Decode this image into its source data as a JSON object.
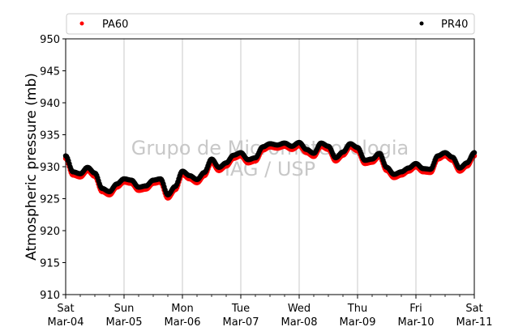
{
  "chart_data": {
    "type": "scatter",
    "ylabel": "Atmospheric pressure (mb)",
    "xlabel": "",
    "title": "",
    "ylim": [
      910,
      950
    ],
    "yticks": [
      910,
      915,
      920,
      925,
      930,
      935,
      940,
      945,
      950
    ],
    "xlim": [
      "2017-03-04",
      "2017-03-11"
    ],
    "xticks": [
      {
        "day": "Sat",
        "date": "Mar-04"
      },
      {
        "day": "Sun",
        "date": "Mar-05"
      },
      {
        "day": "Mon",
        "date": "Mar-06"
      },
      {
        "day": "Tue",
        "date": "Mar-07"
      },
      {
        "day": "Wed",
        "date": "Mar-08"
      },
      {
        "day": "Thu",
        "date": "Mar-09"
      },
      {
        "day": "Fri",
        "date": "Mar-10"
      },
      {
        "day": "Sat",
        "date": "Mar-11"
      }
    ],
    "grid": "vertical",
    "legend_position": "top",
    "watermark": [
      "Grupo de Micrometeorologia",
      "IAG / USP"
    ],
    "series": [
      {
        "name": "PA60",
        "color": "#ff0000",
        "x": [
          "2017-03-04 00:00",
          "2017-03-04 03:00",
          "2017-03-04 06:00",
          "2017-03-04 09:00",
          "2017-03-04 12:00",
          "2017-03-04 15:00",
          "2017-03-04 18:00",
          "2017-03-04 21:00",
          "2017-03-05 00:00",
          "2017-03-05 03:00",
          "2017-03-05 06:00",
          "2017-03-05 09:00",
          "2017-03-05 12:00",
          "2017-03-05 15:00",
          "2017-03-05 18:00",
          "2017-03-05 21:00",
          "2017-03-06 00:00",
          "2017-03-06 03:00",
          "2017-03-06 06:00",
          "2017-03-06 09:00",
          "2017-03-06 12:00",
          "2017-03-06 15:00",
          "2017-03-06 18:00",
          "2017-03-06 21:00",
          "2017-03-07 00:00",
          "2017-03-07 03:00",
          "2017-03-07 06:00",
          "2017-03-07 09:00",
          "2017-03-07 12:00",
          "2017-03-07 15:00",
          "2017-03-07 18:00",
          "2017-03-07 21:00",
          "2017-03-08 00:00",
          "2017-03-08 03:00",
          "2017-03-08 06:00",
          "2017-03-08 09:00",
          "2017-03-08 12:00",
          "2017-03-08 15:00",
          "2017-03-08 18:00",
          "2017-03-08 21:00",
          "2017-03-09 00:00",
          "2017-03-09 03:00",
          "2017-03-09 06:00",
          "2017-03-09 09:00",
          "2017-03-09 12:00",
          "2017-03-09 15:00",
          "2017-03-09 18:00",
          "2017-03-09 21:00",
          "2017-03-10 00:00",
          "2017-03-10 03:00",
          "2017-03-10 06:00",
          "2017-03-10 09:00",
          "2017-03-10 12:00",
          "2017-03-10 15:00",
          "2017-03-10 18:00",
          "2017-03-10 21:00",
          "2017-03-11 00:00"
        ],
        "y": [
          931.3,
          928.7,
          928.4,
          929.4,
          928.5,
          926.1,
          925.6,
          926.8,
          927.6,
          927.4,
          926.3,
          926.5,
          927.4,
          927.6,
          925.1,
          926.4,
          928.8,
          928.1,
          927.5,
          928.6,
          930.7,
          929.4,
          930.1,
          931.3,
          931.7,
          930.6,
          930.9,
          932.6,
          933.1,
          932.9,
          933.2,
          932.7,
          933.3,
          932.2,
          931.6,
          933.2,
          932.7,
          930.9,
          931.8,
          933.1,
          932.5,
          930.5,
          930.7,
          931.6,
          929.4,
          928.3,
          928.7,
          929.3,
          930.0,
          929.2,
          929.1,
          931.2,
          931.7,
          931.0,
          929.3,
          930.1,
          931.7
        ]
      },
      {
        "name": "PR40",
        "color": "#000000",
        "x": [
          "2017-03-04 00:00",
          "2017-03-04 03:00",
          "2017-03-04 06:00",
          "2017-03-04 09:00",
          "2017-03-04 12:00",
          "2017-03-04 15:00",
          "2017-03-04 18:00",
          "2017-03-04 21:00",
          "2017-03-05 00:00",
          "2017-03-05 03:00",
          "2017-03-05 06:00",
          "2017-03-05 09:00",
          "2017-03-05 12:00",
          "2017-03-05 15:00",
          "2017-03-05 18:00",
          "2017-03-05 21:00",
          "2017-03-06 00:00",
          "2017-03-06 03:00",
          "2017-03-06 06:00",
          "2017-03-06 09:00",
          "2017-03-06 12:00",
          "2017-03-06 15:00",
          "2017-03-06 18:00",
          "2017-03-06 21:00",
          "2017-03-07 00:00",
          "2017-03-07 03:00",
          "2017-03-07 06:00",
          "2017-03-07 09:00",
          "2017-03-07 12:00",
          "2017-03-07 15:00",
          "2017-03-07 18:00",
          "2017-03-07 21:00",
          "2017-03-08 00:00",
          "2017-03-08 03:00",
          "2017-03-08 06:00",
          "2017-03-08 09:00",
          "2017-03-08 12:00",
          "2017-03-08 15:00",
          "2017-03-08 18:00",
          "2017-03-08 21:00",
          "2017-03-09 00:00",
          "2017-03-09 03:00",
          "2017-03-09 06:00",
          "2017-03-09 09:00",
          "2017-03-09 12:00",
          "2017-03-09 15:00",
          "2017-03-09 18:00",
          "2017-03-09 21:00",
          "2017-03-10 00:00",
          "2017-03-10 03:00",
          "2017-03-10 06:00",
          "2017-03-10 09:00",
          "2017-03-10 12:00",
          "2017-03-10 15:00",
          "2017-03-10 18:00",
          "2017-03-10 21:00",
          "2017-03-11 00:00"
        ],
        "y": [
          931.7,
          929.2,
          928.9,
          929.9,
          929.0,
          926.6,
          926.1,
          927.3,
          928.1,
          927.9,
          926.8,
          927.0,
          927.9,
          928.1,
          925.6,
          926.9,
          929.3,
          928.6,
          928.0,
          929.1,
          931.2,
          929.9,
          930.6,
          931.8,
          932.2,
          931.1,
          931.4,
          933.1,
          933.6,
          933.4,
          933.7,
          933.2,
          933.8,
          932.7,
          932.1,
          933.7,
          933.2,
          931.4,
          932.3,
          933.6,
          933.0,
          931.0,
          931.2,
          932.1,
          929.9,
          928.8,
          929.2,
          929.8,
          930.5,
          929.7,
          929.6,
          931.7,
          932.2,
          931.5,
          929.8,
          930.6,
          932.2
        ]
      }
    ]
  }
}
